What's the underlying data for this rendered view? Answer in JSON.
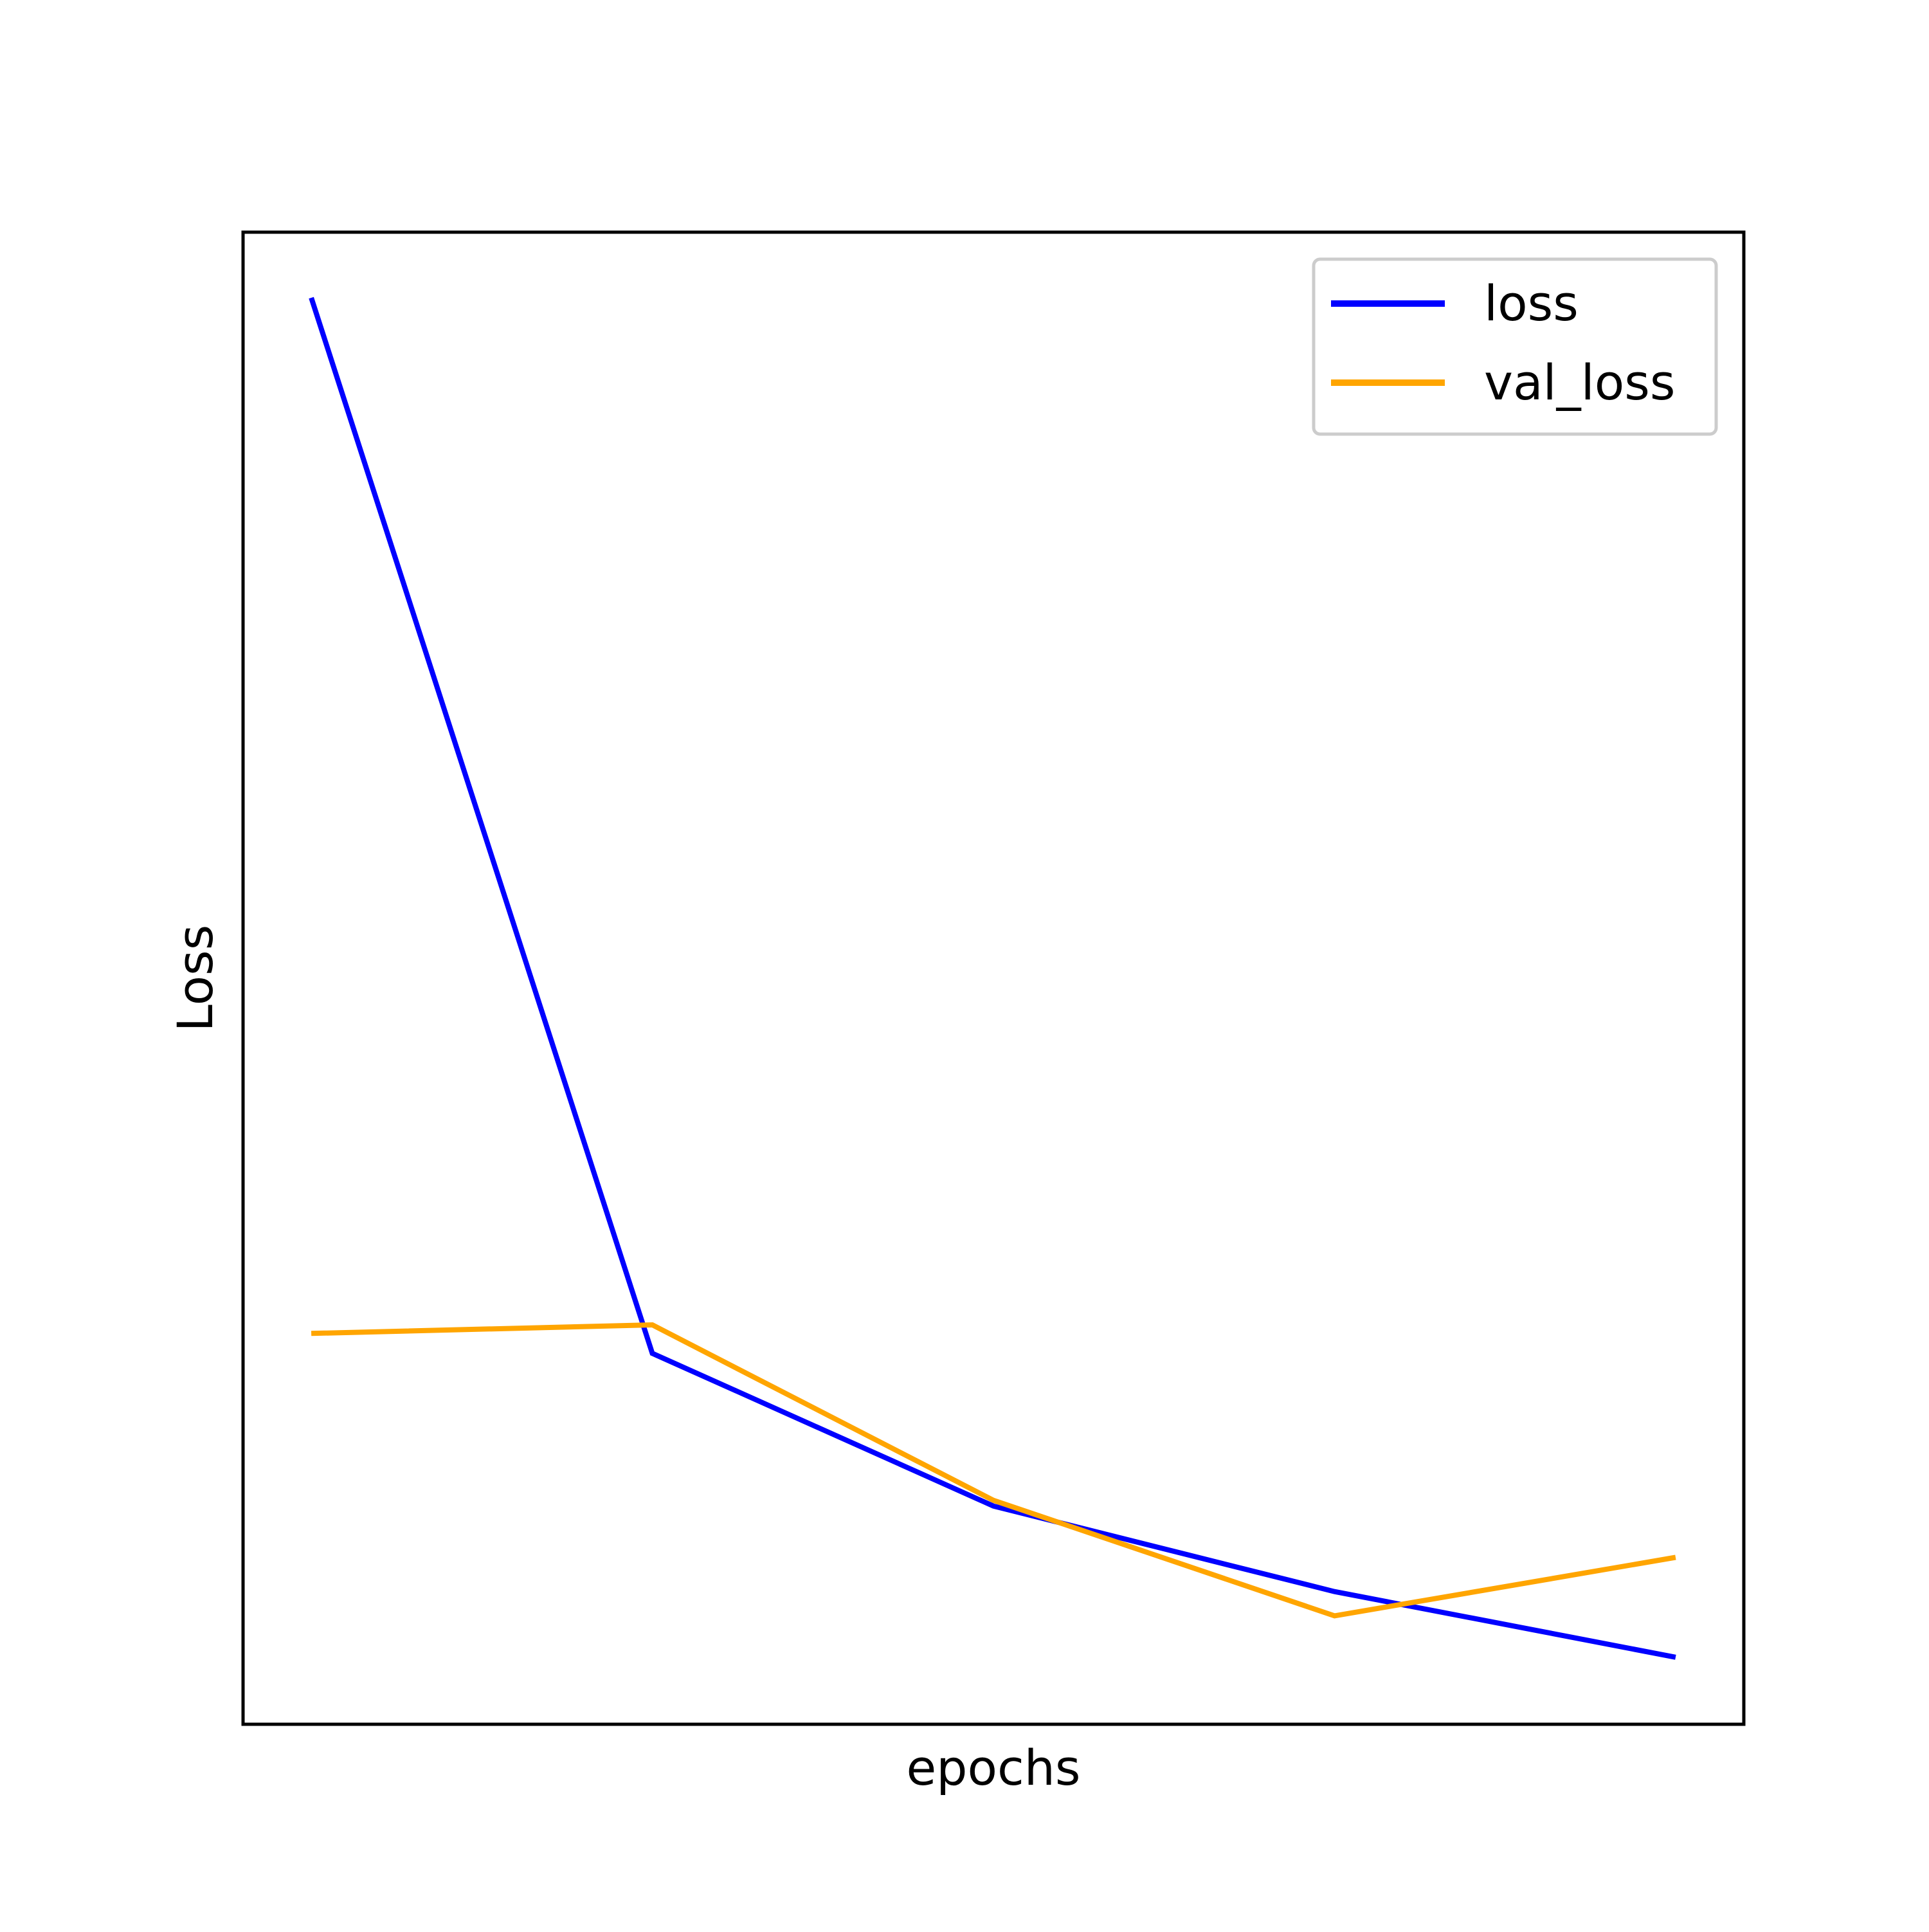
{
  "chart_data": {
    "type": "line",
    "title": "",
    "xlabel": "epochs",
    "ylabel": "Loss",
    "x": [
      0,
      1,
      2,
      3,
      4
    ],
    "series": [
      {
        "name": "loss",
        "color": "#0000ff",
        "values": [
          1.0,
          0.26,
          0.153,
          0.093,
          0.047
        ]
      },
      {
        "name": "val_loss",
        "color": "#ffa500",
        "values": [
          0.274,
          0.28,
          0.157,
          0.076,
          0.117
        ]
      }
    ],
    "xlim": [
      -0.2,
      4.2
    ],
    "ylim": [
      0.0,
      1.046
    ],
    "grid": false,
    "show_ticks": false,
    "legend": {
      "position": "top-right"
    }
  }
}
